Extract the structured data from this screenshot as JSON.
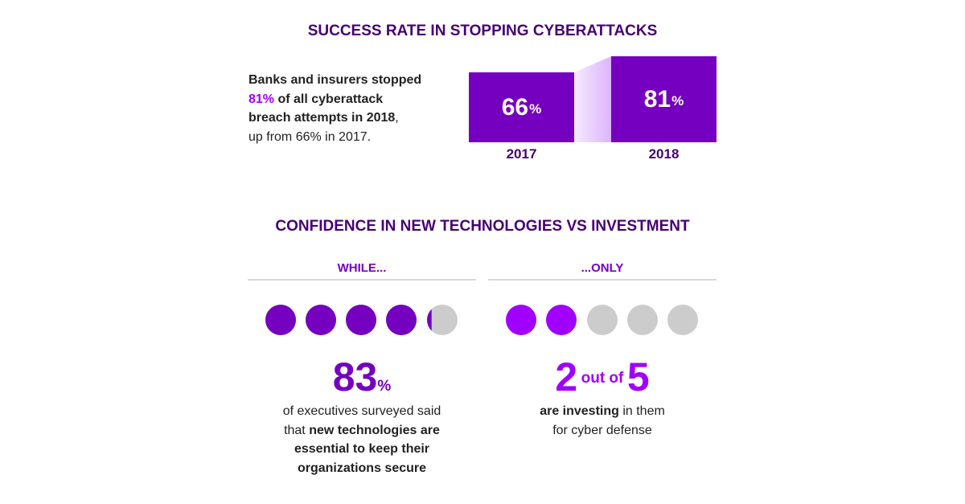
{
  "section1": {
    "title": "SUCCESS RATE IN STOPPING CYBERATTACKS",
    "intro": {
      "line1": "Banks and insurers stopped",
      "highlight": "81%",
      "line2_rest": " of all cyberattack",
      "line3": "breach attempts in 2018",
      "line3_tail": ",",
      "line4": "up from 66% in 2017."
    }
  },
  "chart_data": {
    "type": "bar",
    "categories": [
      "2017",
      "2018"
    ],
    "values": [
      66,
      81
    ],
    "value_labels": [
      "66",
      "81"
    ],
    "unit": "%",
    "colors": {
      "bar": "#7500c0",
      "connector": "#e8c8ff"
    }
  },
  "section2": {
    "title": "CONFIDENCE IN NEW TECHNOLOGIES VS INVESTMENT",
    "left": {
      "header": "WHILE...",
      "value": 83,
      "big": "83",
      "unit": "%",
      "filled_fraction": 0.83,
      "color": "#7500c0",
      "desc": {
        "l1": "of executives surveyed said",
        "l2a": "that ",
        "l2b": "new technologies are",
        "l3": "essential to keep their",
        "l4": "organizations secure"
      }
    },
    "right": {
      "header": "...ONLY",
      "filled": 2,
      "total": 5,
      "big1": "2",
      "mid": "out of",
      "big2": "5",
      "color": "#a100ff",
      "desc": {
        "l1a": "are investing",
        "l1b": " in them",
        "l2": "for cyber defense"
      }
    },
    "empty_color": "#cccccc"
  }
}
